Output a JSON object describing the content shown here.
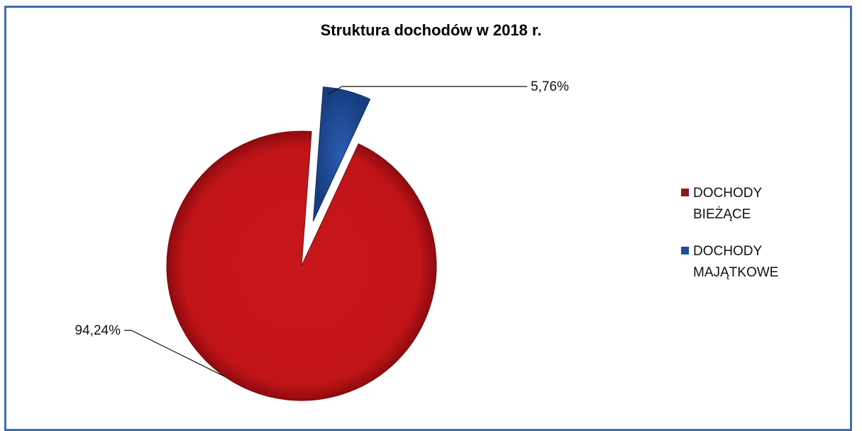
{
  "chart_data": {
    "type": "pie",
    "title": "Struktura dochodów w 2018 r.",
    "slices": [
      {
        "name": "DOCHODY BIEŻĄCE",
        "value": 94.24,
        "label": "94,24%",
        "color": "#c8161b"
      },
      {
        "name": "DOCHODY MAJĄTKOWE",
        "value": 5.76,
        "label": "5,76%",
        "color": "#1f4e9c"
      }
    ],
    "legend_position": "right"
  },
  "colors": {
    "frame_border": "#3f6fa8",
    "background": "#ffffff"
  }
}
